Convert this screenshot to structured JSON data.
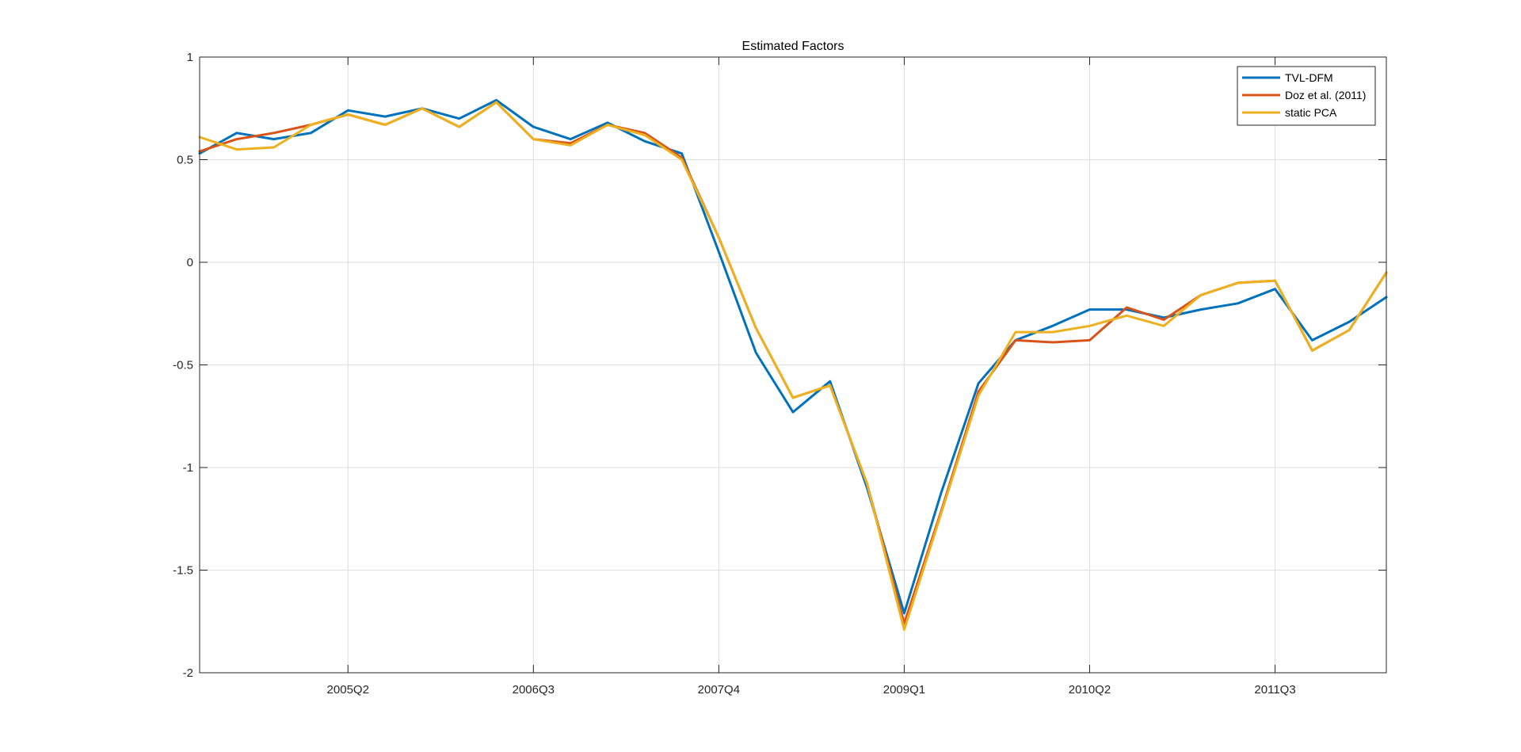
{
  "chart_data": {
    "type": "line",
    "title": "Estimated Factors",
    "xlabel": "",
    "ylabel": "",
    "ylim": [
      -2,
      1
    ],
    "yticks": [
      1,
      0.5,
      0,
      -0.5,
      -1,
      -1.5,
      -2
    ],
    "ytick_labels": [
      "1",
      "0.5",
      "0",
      "-0.5",
      "-1",
      "-1.5",
      "-2"
    ],
    "x": [
      "2004Q2",
      "2004Q3",
      "2004Q4",
      "2005Q1",
      "2005Q2",
      "2005Q3",
      "2005Q4",
      "2006Q1",
      "2006Q2",
      "2006Q3",
      "2006Q4",
      "2007Q1",
      "2007Q2",
      "2007Q3",
      "2007Q4",
      "2008Q1",
      "2008Q2",
      "2008Q3",
      "2008Q4",
      "2009Q1",
      "2009Q2",
      "2009Q3",
      "2009Q4",
      "2010Q1",
      "2010Q2",
      "2010Q3",
      "2010Q4",
      "2011Q1",
      "2011Q2",
      "2011Q3",
      "2011Q4",
      "2012Q1",
      "2012Q2"
    ],
    "xticks": [
      "2005Q2",
      "2006Q3",
      "2007Q4",
      "2009Q1",
      "2010Q2",
      "2011Q3"
    ],
    "grid": true,
    "legend_position": "top-right",
    "series": [
      {
        "name": "TVL-DFM",
        "color": "#0072BD",
        "values": [
          0.53,
          0.63,
          0.6,
          0.63,
          0.74,
          0.71,
          0.75,
          0.7,
          0.79,
          0.66,
          0.6,
          0.68,
          0.59,
          0.53,
          0.05,
          -0.44,
          -0.73,
          -0.58,
          -1.1,
          -1.71,
          -1.12,
          -0.59,
          -0.38,
          -0.31,
          -0.23,
          -0.23,
          -0.27,
          -0.23,
          -0.2,
          -0.13,
          -0.38,
          -0.29,
          -0.17
        ]
      },
      {
        "name": "Doz et al. (2011)",
        "color": "#D95319",
        "values": [
          0.54,
          0.6,
          0.63,
          0.67,
          0.72,
          0.67,
          0.75,
          0.66,
          0.78,
          0.6,
          0.58,
          0.67,
          0.63,
          0.51,
          0.12,
          -0.32,
          -0.66,
          -0.6,
          -1.08,
          -1.76,
          -1.21,
          -0.63,
          -0.38,
          -0.39,
          -0.38,
          -0.22,
          -0.28,
          -0.16,
          -0.1,
          -0.09,
          -0.43,
          -0.33,
          -0.05
        ]
      },
      {
        "name": "static PCA",
        "color": "#EDB120",
        "values": [
          0.61,
          0.55,
          0.56,
          0.67,
          0.72,
          0.67,
          0.75,
          0.66,
          0.78,
          0.6,
          0.57,
          0.67,
          0.62,
          0.5,
          0.12,
          -0.32,
          -0.66,
          -0.6,
          -1.08,
          -1.79,
          -1.22,
          -0.65,
          -0.34,
          -0.34,
          -0.31,
          -0.26,
          -0.31,
          -0.16,
          -0.1,
          -0.09,
          -0.43,
          -0.33,
          -0.05
        ]
      }
    ]
  }
}
